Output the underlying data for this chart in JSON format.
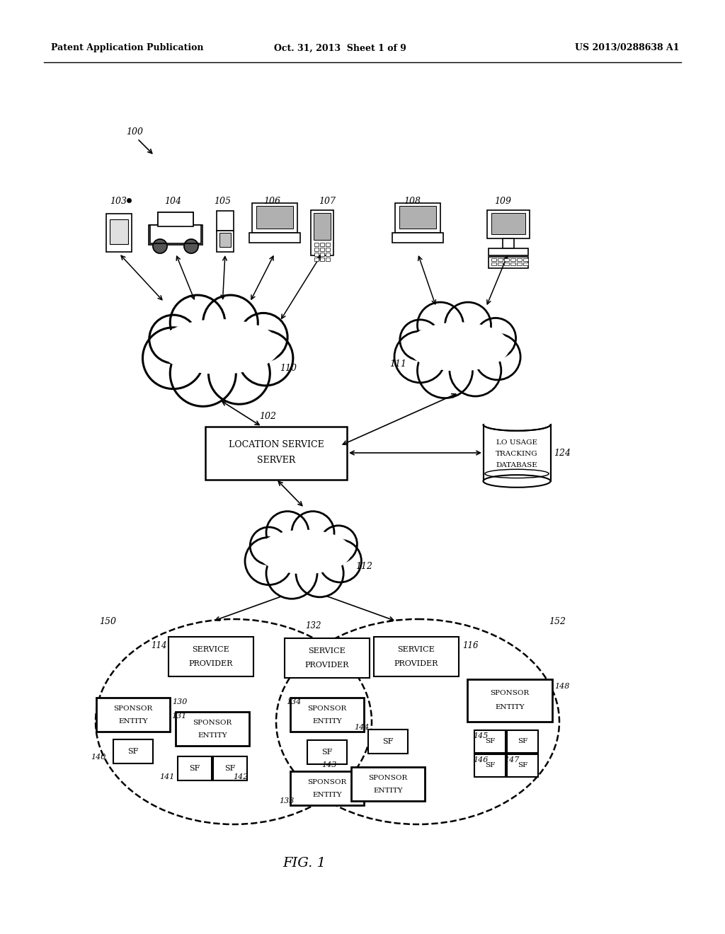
{
  "title": "FIG. 1",
  "header_left": "Patent Application Publication",
  "header_center": "Oct. 31, 2013  Sheet 1 of 9",
  "header_right": "US 2013/0288638 A1",
  "background": "#ffffff",
  "text_color": "#000000",
  "fig_width": 10.24,
  "fig_height": 13.2,
  "dpi": 100
}
